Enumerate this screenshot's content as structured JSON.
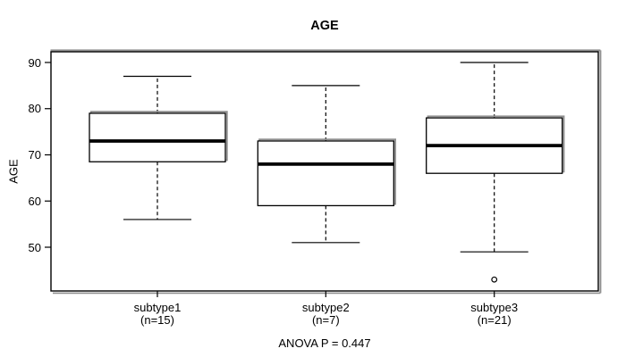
{
  "chart_data": {
    "type": "boxplot",
    "title": "AGE",
    "ylabel": "AGE",
    "xlabel": "",
    "footnote": "ANOVA P = 0.447",
    "grid": false,
    "legend": "none",
    "yticks": [
      90,
      80,
      70,
      60,
      50
    ],
    "ylim": [
      42,
      91
    ],
    "categories": [
      "subtype1",
      "subtype2",
      "subtype3"
    ],
    "groups": [
      {
        "label": "subtype1",
        "n_label": "(n=15)",
        "n": 15,
        "min": 56,
        "q1": 68.5,
        "median": 73,
        "q3": 79,
        "max": 87,
        "outliers": []
      },
      {
        "label": "subtype2",
        "n_label": "(n=7)",
        "n": 7,
        "min": 51,
        "q1": 59,
        "median": 68,
        "q3": 73,
        "max": 85,
        "outliers": []
      },
      {
        "label": "subtype3",
        "n_label": "(n=21)",
        "n": 21,
        "min": 49,
        "q1": 66,
        "median": 72,
        "q3": 78,
        "max": 90,
        "outliers": [
          43
        ]
      }
    ],
    "colors": {
      "box_fill": "#ffffff",
      "stroke": "#000000",
      "shadow": "#8f8f8f",
      "text": "#000000",
      "background": "#ffffff"
    }
  }
}
